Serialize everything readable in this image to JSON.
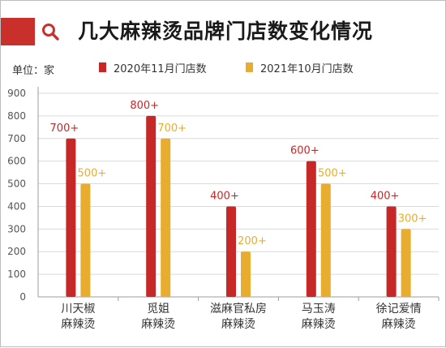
{
  "header": {
    "title": "几大麻辣烫品牌门店数变化情况",
    "icon": "search-icon"
  },
  "unit_label": "单位：家",
  "colors": {
    "accent": "#c9302c",
    "series_2020": "#c62828",
    "series_2021": "#e8ad2e",
    "grid": "#d9d9d9"
  },
  "chart_data": {
    "type": "bar",
    "title": "几大麻辣烫品牌门店数变化情况",
    "xlabel": "",
    "ylabel": "单位：家",
    "ylim": [
      0,
      900
    ],
    "yticks": [
      0,
      100,
      200,
      300,
      400,
      500,
      600,
      700,
      800,
      900
    ],
    "grid": true,
    "legend_position": "top",
    "categories": [
      [
        "川天椒",
        "麻辣烫"
      ],
      [
        "觅姐",
        "麻辣烫"
      ],
      [
        "滋麻官私房",
        "麻辣烫"
      ],
      [
        "马玉涛",
        "麻辣烫"
      ],
      [
        "徐记爱情",
        "麻辣烫"
      ]
    ],
    "series": [
      {
        "name": "2020年11月门店数",
        "values": [
          700,
          800,
          400,
          600,
          400
        ],
        "labels": [
          "700+",
          "800+",
          "400+",
          "600+",
          "400+"
        ]
      },
      {
        "name": "2021年10月门店数",
        "values": [
          500,
          700,
          200,
          500,
          300
        ],
        "labels": [
          "500+",
          "700+",
          "200+",
          "500+",
          "300+"
        ]
      }
    ]
  }
}
